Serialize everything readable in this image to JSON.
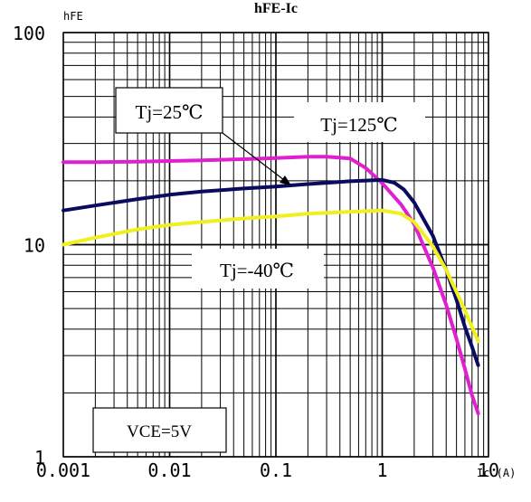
{
  "chart_data": {
    "type": "line",
    "title": "hFE-Ic",
    "xlabel": "Ic (A)",
    "ylabel": "hFE",
    "xscale": "log",
    "yscale": "log",
    "xlim": [
      0.001,
      10
    ],
    "ylim": [
      1,
      100
    ],
    "grid": true,
    "x_ticks": [
      "0.001",
      "0.01",
      "0.1",
      "1",
      "10"
    ],
    "y_ticks": [
      "1",
      "10",
      "100"
    ],
    "series": [
      {
        "name": "Tj=125℃",
        "color": "#e020d0",
        "x": [
          0.001,
          0.002,
          0.005,
          0.01,
          0.02,
          0.05,
          0.1,
          0.2,
          0.3,
          0.5,
          0.7,
          1.0,
          1.5,
          2.0,
          3.0,
          4.0,
          5.0,
          6.0,
          7.0,
          8.0
        ],
        "y": [
          24.5,
          24.5,
          24.6,
          24.8,
          25.0,
          25.3,
          25.6,
          26.0,
          26.0,
          25.5,
          23.0,
          19.5,
          15.5,
          12.5,
          7.8,
          5.2,
          3.6,
          2.6,
          1.95,
          1.6
        ]
      },
      {
        "name": "Tj=25℃",
        "color": "#0a0a60",
        "x": [
          0.001,
          0.002,
          0.005,
          0.01,
          0.02,
          0.05,
          0.1,
          0.2,
          0.5,
          1.0,
          1.3,
          1.6,
          2.0,
          3.0,
          4.0,
          5.0,
          6.0,
          7.0,
          8.0
        ],
        "y": [
          14.5,
          15.3,
          16.4,
          17.2,
          17.8,
          18.4,
          18.8,
          19.3,
          19.9,
          20.2,
          19.6,
          18.2,
          15.8,
          11.0,
          7.6,
          5.5,
          4.1,
          3.3,
          2.7
        ]
      },
      {
        "name": "Tj=-40℃",
        "color": "#f0f020",
        "x": [
          0.001,
          0.002,
          0.005,
          0.01,
          0.02,
          0.05,
          0.1,
          0.2,
          0.5,
          1.0,
          1.5,
          2.0,
          3.0,
          4.0,
          5.0,
          6.0,
          7.0,
          8.0
        ],
        "y": [
          10.0,
          10.8,
          11.8,
          12.4,
          12.8,
          13.3,
          13.6,
          14.0,
          14.3,
          14.5,
          14.0,
          12.8,
          9.8,
          7.6,
          6.0,
          4.9,
          4.1,
          3.5
        ]
      }
    ],
    "annotations": [
      "Tj=25℃",
      "Tj=125℃",
      "Tj=-40℃",
      "VCE=5V"
    ]
  }
}
